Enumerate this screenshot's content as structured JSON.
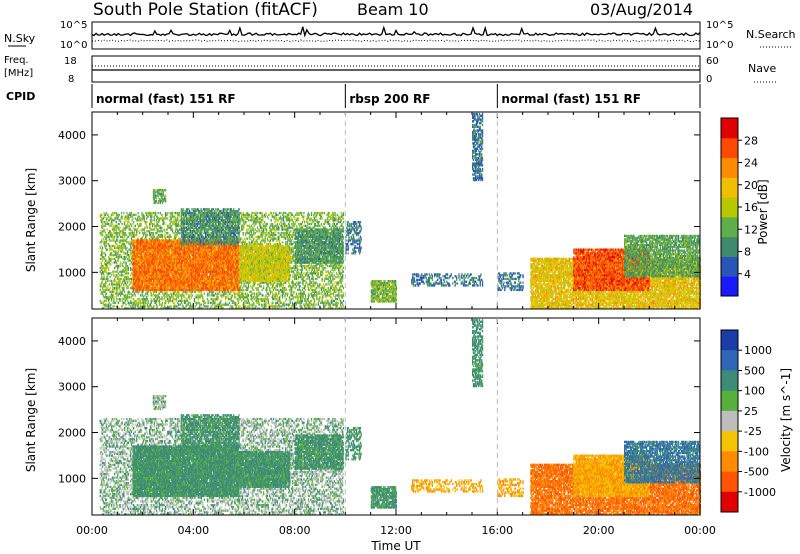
{
  "header": {
    "title": "South Pole Station (fitACF)",
    "beam": "Beam 10",
    "date": "03/Aug/2014"
  },
  "top_panels": {
    "nsky_label": "N.Sky",
    "nsearch_label": "N.Search",
    "nsky_ticks": [
      "10^5",
      "10^0"
    ],
    "nsearch_ticks": [
      "10^5",
      "10^0"
    ],
    "freq_label": "Freq.",
    "freq_unit": "[MHz]",
    "freq_ticks": [
      "18",
      "8"
    ],
    "nave_label": "Nave",
    "nave_ticks": [
      "60",
      "0"
    ],
    "cpid_label": "CPID",
    "cpid_segments": [
      {
        "name": "normal (fast) 151 RF",
        "start_h": 0,
        "end_h": 10
      },
      {
        "name": "rbsp 200 RF",
        "start_h": 10,
        "end_h": 16
      },
      {
        "name": "normal (fast) 151 RF",
        "start_h": 16,
        "end_h": 24
      }
    ]
  },
  "axes": {
    "xlabel": "Time UT",
    "ylabel": "Slant Range [km]",
    "xticks": [
      "00:00",
      "04:00",
      "08:00",
      "12:00",
      "16:00",
      "20:00",
      "00:00"
    ],
    "yticks": [
      "1000",
      "2000",
      "3000",
      "4000"
    ]
  },
  "power_colorbar": {
    "label": "Power [dB]",
    "ticks": [
      "4",
      "8",
      "12",
      "16",
      "20",
      "24",
      "28"
    ],
    "colors": [
      "#1a1aff",
      "#2a55b8",
      "#3f8a6a",
      "#5fae4c",
      "#b8c800",
      "#f0c000",
      "#ff8c00",
      "#ff4a00",
      "#e00000"
    ]
  },
  "velocity_colorbar": {
    "label": "Velocity [m s^-1]",
    "ticks": [
      "1000",
      "500",
      "100",
      "25",
      "-25",
      "-100",
      "-500",
      "-1000"
    ],
    "colors": [
      "#1c3caa",
      "#2f66b8",
      "#3d8c78",
      "#55b03c",
      "#bdbdbd",
      "#f4c400",
      "#ff8c00",
      "#ff5500",
      "#e00000"
    ]
  },
  "chart_data": {
    "type": "heatmap",
    "title": "South Pole Station (fitACF)",
    "subtitle": "Beam 10",
    "xlabel": "Time UT",
    "ylabel": "Slant Range [km]",
    "xlim_hours": [
      0,
      24
    ],
    "ylim_km": [
      200,
      4500
    ],
    "panels": [
      "Power [dB]",
      "Velocity [m s^-1]"
    ],
    "echo_regions": [
      {
        "t0": 0.3,
        "t1": 9.9,
        "r0": 200,
        "r1": 2300,
        "power_db": 12,
        "velocity": 25,
        "density": 0.35
      },
      {
        "t0": 1.6,
        "t1": 5.8,
        "r0": 600,
        "r1": 1700,
        "power_db": 24,
        "velocity": 100,
        "density": 0.85
      },
      {
        "t0": 5.8,
        "t1": 7.8,
        "r0": 800,
        "r1": 1600,
        "power_db": 16,
        "velocity": 100,
        "density": 0.8
      },
      {
        "t0": 3.5,
        "t1": 5.8,
        "r0": 1600,
        "r1": 2400,
        "power_db": 8,
        "velocity": 100,
        "density": 0.55
      },
      {
        "t0": 8.0,
        "t1": 9.9,
        "r0": 1200,
        "r1": 1950,
        "power_db": 9,
        "velocity": 100,
        "density": 0.7
      },
      {
        "t0": 2.4,
        "t1": 2.9,
        "r0": 2500,
        "r1": 2800,
        "power_db": 10,
        "velocity": 25,
        "density": 0.5
      },
      {
        "t0": 10.0,
        "t1": 10.6,
        "r0": 1400,
        "r1": 2100,
        "power_db": 6,
        "velocity": 100,
        "density": 0.35
      },
      {
        "t0": 11.0,
        "t1": 12.0,
        "r0": 350,
        "r1": 800,
        "power_db": 12,
        "velocity": 100,
        "density": 0.7
      },
      {
        "t0": 12.6,
        "t1": 15.4,
        "r0": 700,
        "r1": 950,
        "power_db": 6,
        "velocity": -100,
        "density": 0.35
      },
      {
        "t0": 16.0,
        "t1": 17.0,
        "r0": 600,
        "r1": 1000,
        "power_db": 6,
        "velocity": -100,
        "density": 0.35
      },
      {
        "t0": 17.3,
        "t1": 24.0,
        "r0": 200,
        "r1": 1300,
        "power_db": 18,
        "velocity": -500,
        "density": 0.7
      },
      {
        "t0": 19.0,
        "t1": 22.0,
        "r0": 600,
        "r1": 1500,
        "power_db": 26,
        "velocity": -100,
        "density": 0.8
      },
      {
        "t0": 21.0,
        "t1": 24.0,
        "r0": 900,
        "r1": 1800,
        "power_db": 10,
        "velocity": 500,
        "density": 0.65
      },
      {
        "t0": 15.0,
        "t1": 15.4,
        "r0": 3000,
        "r1": 4450,
        "power_db": 6,
        "velocity": 100,
        "density": 0.5
      }
    ]
  }
}
